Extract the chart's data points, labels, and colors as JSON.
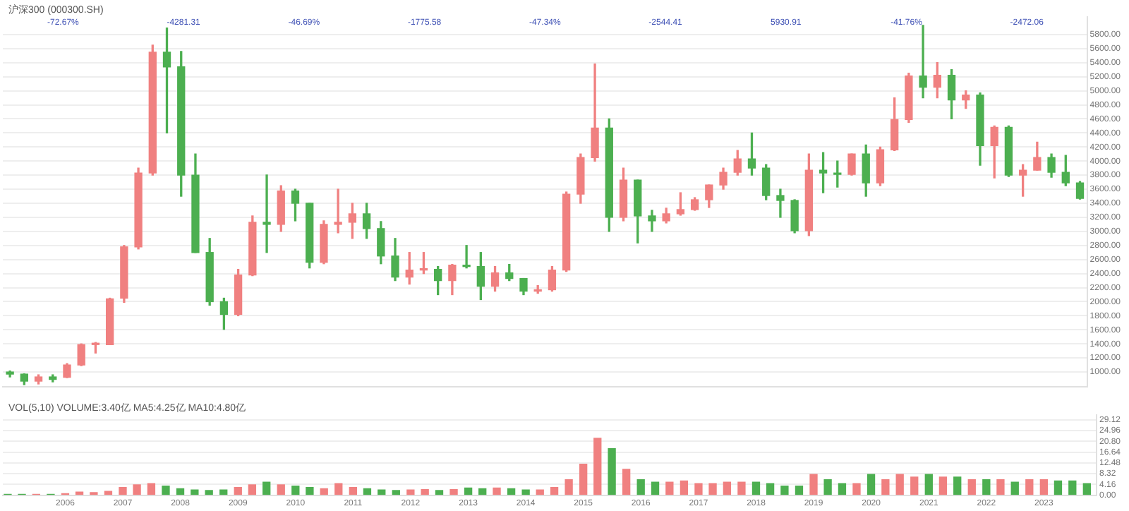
{
  "chart_data": [
    {
      "type": "candlestick",
      "title": "沪深300 (000300.SH)",
      "categories": [
        null,
        null,
        null,
        null,
        null,
        null,
        null,
        null,
        null,
        null,
        null,
        null,
        null,
        null,
        null,
        null,
        null,
        null,
        null,
        null,
        null,
        null,
        null,
        null,
        null,
        null,
        null,
        null,
        null,
        null,
        null,
        null,
        null,
        null,
        null,
        null,
        null,
        null,
        null,
        null,
        null,
        null,
        null,
        null,
        null,
        null,
        null,
        null,
        null,
        null,
        null,
        null,
        null,
        null,
        null,
        null,
        null,
        null,
        null,
        null,
        null,
        null,
        null,
        null,
        null,
        null,
        null,
        null,
        null,
        null,
        null,
        null,
        null,
        null,
        null,
        null
      ],
      "ohlc": [
        [
          1000,
          1015,
          930,
          970
        ],
        [
          970,
          975,
          820,
          870
        ],
        [
          870,
          960,
          830,
          930
        ],
        [
          930,
          960,
          860,
          895
        ],
        [
          925,
          1120,
          920,
          1100
        ],
        [
          1100,
          1400,
          1090,
          1390
        ],
        [
          1390,
          1420,
          1270,
          1390
        ],
        [
          1390,
          2050,
          1390,
          2040
        ],
        [
          2050,
          2800,
          1990,
          2780
        ],
        [
          2780,
          3900,
          2750,
          3830
        ],
        [
          3830,
          5650,
          3800,
          5550
        ],
        [
          5550,
          5891.72,
          4400,
          5340
        ],
        [
          5340,
          5560,
          3500,
          3800
        ],
        [
          3800,
          4100,
          2700,
          2700
        ],
        [
          2700,
          2900,
          1950,
          2000
        ],
        [
          2000,
          2050,
          1606.73,
          1820
        ],
        [
          1820,
          2460,
          1800,
          2380
        ],
        [
          2380,
          3220,
          2370,
          3130
        ],
        [
          3130,
          3803,
          2700,
          3100
        ],
        [
          3100,
          3650,
          3000,
          3575
        ],
        [
          3575,
          3600,
          3150,
          3400
        ],
        [
          3400,
          3400,
          2480,
          2560
        ],
        [
          2560,
          3150,
          2540,
          3100
        ],
        [
          3100,
          3600,
          2980,
          3130
        ],
        [
          3130,
          3400,
          2900,
          3250
        ],
        [
          3250,
          3400,
          2900,
          3040
        ],
        [
          3040,
          3140,
          2540,
          2650
        ],
        [
          2650,
          2900,
          2300,
          2350
        ],
        [
          2350,
          2700,
          2250,
          2450
        ],
        [
          2450,
          2700,
          2400,
          2460
        ],
        [
          2460,
          2500,
          2100,
          2300
        ],
        [
          2300,
          2530,
          2100,
          2520
        ],
        [
          2520,
          2800,
          2480,
          2500
        ],
        [
          2500,
          2700,
          2030,
          2220
        ],
        [
          2220,
          2500,
          2150,
          2410
        ],
        [
          2410,
          2530,
          2300,
          2330
        ],
        [
          2330,
          2330,
          2100,
          2150
        ],
        [
          2150,
          2230,
          2120,
          2170
        ],
        [
          2170,
          2500,
          2150,
          2450
        ],
        [
          2450,
          3560,
          2430,
          3530
        ],
        [
          3530,
          4100,
          3400,
          4050
        ],
        [
          4050,
          5380,
          4000,
          4470
        ],
        [
          4470,
          4600,
          3000,
          3200
        ],
        [
          3200,
          3900,
          3150,
          3730
        ],
        [
          3730,
          3730,
          2836,
          3220
        ],
        [
          3220,
          3300,
          3000,
          3150
        ],
        [
          3150,
          3330,
          3120,
          3250
        ],
        [
          3250,
          3550,
          3230,
          3310
        ],
        [
          3310,
          3480,
          3300,
          3450
        ],
        [
          3450,
          3660,
          3340,
          3660
        ],
        [
          3660,
          3900,
          3600,
          3840
        ],
        [
          3840,
          4150,
          3800,
          4030
        ],
        [
          4030,
          4400,
          3800,
          3900
        ],
        [
          3900,
          3950,
          3450,
          3510
        ],
        [
          3510,
          3600,
          3200,
          3440
        ],
        [
          3440,
          3450,
          2980,
          3010
        ],
        [
          3010,
          4100,
          2940,
          3870
        ],
        [
          3870,
          4120,
          3550,
          3830
        ],
        [
          3830,
          4000,
          3630,
          3810
        ],
        [
          3810,
          4100,
          3800,
          4100
        ],
        [
          4100,
          4230,
          3500,
          3690
        ],
        [
          3690,
          4200,
          3650,
          4160
        ],
        [
          4160,
          4900,
          4150,
          4590
        ],
        [
          4590,
          5250,
          4550,
          5210
        ],
        [
          5210,
          5930.91,
          4900,
          5050
        ],
        [
          5050,
          5400,
          4900,
          5220
        ],
        [
          5220,
          5300,
          4600,
          4870
        ],
        [
          4870,
          5000,
          4750,
          4940
        ],
        [
          4940,
          4970,
          3940,
          4220
        ],
        [
          4220,
          4500,
          3760,
          4480
        ],
        [
          4480,
          4500,
          3780,
          3800
        ],
        [
          3800,
          3950,
          3500,
          3870
        ],
        [
          3870,
          4270,
          3870,
          4050
        ],
        [
          4050,
          4100,
          3770,
          3840
        ],
        [
          3840,
          4080,
          3650,
          3690
        ],
        [
          3690,
          3710,
          3458.85,
          3470
        ]
      ],
      "colors": [
        "#4caf50",
        "#4caf50",
        "#f08080",
        "#4caf50",
        "#f08080",
        "#f08080",
        "#f08080",
        "#f08080",
        "#f08080",
        "#f08080",
        "#f08080",
        "#4caf50",
        "#4caf50",
        "#4caf50",
        "#4caf50",
        "#4caf50",
        "#f08080",
        "#f08080",
        "#4caf50",
        "#f08080",
        "#4caf50",
        "#4caf50",
        "#f08080",
        "#f08080",
        "#f08080",
        "#4caf50",
        "#4caf50",
        "#4caf50",
        "#f08080",
        "#f08080",
        "#4caf50",
        "#f08080",
        "#4caf50",
        "#4caf50",
        "#f08080",
        "#4caf50",
        "#4caf50",
        "#f08080",
        "#f08080",
        "#f08080",
        "#f08080",
        "#f08080",
        "#4caf50",
        "#f08080",
        "#4caf50",
        "#4caf50",
        "#f08080",
        "#f08080",
        "#f08080",
        "#f08080",
        "#f08080",
        "#f08080",
        "#4caf50",
        "#4caf50",
        "#4caf50",
        "#4caf50",
        "#f08080",
        "#4caf50",
        "#4caf50",
        "#f08080",
        "#4caf50",
        "#f08080",
        "#f08080",
        "#f08080",
        "#4caf50",
        "#f08080",
        "#4caf50",
        "#f08080",
        "#4caf50",
        "#f08080",
        "#4caf50",
        "#f08080",
        "#f08080",
        "#4caf50",
        "#4caf50",
        "#4caf50"
      ],
      "ylim": [
        790,
        6050
      ],
      "yticks": [
        {
          "value": 1000,
          "label": "1000.00"
        },
        {
          "value": 1200,
          "label": "1200.00"
        },
        {
          "value": 1400,
          "label": "1400.00"
        },
        {
          "value": 1600,
          "label": "1600.00"
        },
        {
          "value": 1800,
          "label": "1800.00"
        },
        {
          "value": 2000,
          "label": "2000.00"
        },
        {
          "value": 2200,
          "label": "2200.00"
        },
        {
          "value": 2400,
          "label": "2400.00"
        },
        {
          "value": 2600,
          "label": "2600.00"
        },
        {
          "value": 2800,
          "label": "2800.00"
        },
        {
          "value": 3000,
          "label": "3000.00"
        },
        {
          "value": 3200,
          "label": "3200.00"
        },
        {
          "value": 3400,
          "label": "3400.00"
        },
        {
          "value": 3600,
          "label": "3600.00"
        },
        {
          "value": 3800,
          "label": "3800.00"
        },
        {
          "value": 4000,
          "label": "4000.00"
        },
        {
          "value": 4200,
          "label": "4200.00"
        },
        {
          "value": 4400,
          "label": "4400.00"
        },
        {
          "value": 4600,
          "label": "4600.00"
        },
        {
          "value": 4800,
          "label": "4800.00"
        },
        {
          "value": 5000,
          "label": "5000.00"
        },
        {
          "value": 5200,
          "label": "5200.00"
        },
        {
          "value": 5400,
          "label": "5400.00"
        },
        {
          "value": 5600,
          "label": "5600.00"
        },
        {
          "value": 5800,
          "label": "5800.00"
        }
      ],
      "tick_labels": "y",
      "grid": "y",
      "legend": false,
      "annotations": [
        "-72.67%",
        "-4281.31",
        "-46.69%",
        "-1775.58",
        "-47.34%",
        "-2544.41",
        "5930.91",
        "-41.76%",
        "-2472.06"
      ]
    },
    {
      "type": "bar",
      "title": "VOL(5,10)  VOLUME:3.40亿  MA5:4.25亿  MA10:4.80亿",
      "x": [
        "2005-01",
        "2005-04",
        "2005-07",
        "2005-10",
        "2006-01",
        "2006-04",
        "2006-07",
        "2006-10",
        "2007-01",
        "2007-04",
        "2007-07",
        "2007-10",
        "2008-01",
        "2008-04",
        "2008-07",
        "2008-10",
        "2009-01",
        "2009-04",
        "2009-07",
        "2009-10",
        "2010-01",
        "2010-04",
        "2010-07",
        "2010-10",
        "2011-01",
        "2011-04",
        "2011-07",
        "2011-10",
        "2012-01",
        "2012-04",
        "2012-07",
        "2012-10",
        "2013-01",
        "2013-04",
        "2013-07",
        "2013-10",
        "2014-01",
        "2014-04",
        "2014-07",
        "2014-10",
        "2015-01",
        "2015-04",
        "2015-07",
        "2015-10",
        "2016-01",
        "2016-04",
        "2016-07",
        "2016-10",
        "2017-01",
        "2017-04",
        "2017-07",
        "2017-10",
        "2018-01",
        "2018-04",
        "2018-07",
        "2018-10",
        "2019-01",
        "2019-04",
        "2019-07",
        "2019-10",
        "2020-01",
        "2020-04",
        "2020-07",
        "2020-10",
        "2021-01",
        "2021-04",
        "2021-07",
        "2021-10",
        "2022-01",
        "2022-04",
        "2022-07",
        "2022-10",
        "2023-01",
        "2023-04",
        "2023-07",
        "2023-10"
      ],
      "values": [
        0.3,
        0.3,
        0.3,
        0.3,
        0.6,
        1.2,
        1,
        1.5,
        3,
        4,
        4.5,
        3.5,
        2.5,
        2,
        1.8,
        2,
        3,
        4,
        5,
        4,
        3.5,
        3,
        2.5,
        4.5,
        3,
        2.5,
        2,
        1.8,
        2,
        2.2,
        1.8,
        2.2,
        2.8,
        2.5,
        2.8,
        2.5,
        2,
        2,
        3,
        6,
        12,
        22,
        18,
        10,
        6,
        5,
        5,
        5.5,
        4.5,
        4.5,
        5,
        5,
        5,
        4.5,
        3.5,
        3.5,
        8,
        6,
        4.5,
        4.5,
        8,
        6,
        8,
        7,
        8,
        7,
        7,
        6,
        6,
        6,
        5,
        6,
        6,
        5.5,
        5.5,
        4.5
      ],
      "colors": [
        "#4caf50",
        "#4caf50",
        "#f08080",
        "#4caf50",
        "#f08080",
        "#f08080",
        "#f08080",
        "#f08080",
        "#f08080",
        "#f08080",
        "#f08080",
        "#4caf50",
        "#4caf50",
        "#4caf50",
        "#4caf50",
        "#4caf50",
        "#f08080",
        "#f08080",
        "#4caf50",
        "#f08080",
        "#4caf50",
        "#4caf50",
        "#f08080",
        "#f08080",
        "#f08080",
        "#4caf50",
        "#4caf50",
        "#4caf50",
        "#f08080",
        "#f08080",
        "#4caf50",
        "#f08080",
        "#4caf50",
        "#4caf50",
        "#f08080",
        "#4caf50",
        "#4caf50",
        "#f08080",
        "#f08080",
        "#f08080",
        "#f08080",
        "#f08080",
        "#4caf50",
        "#f08080",
        "#4caf50",
        "#4caf50",
        "#f08080",
        "#f08080",
        "#f08080",
        "#f08080",
        "#f08080",
        "#f08080",
        "#4caf50",
        "#4caf50",
        "#4caf50",
        "#4caf50",
        "#f08080",
        "#4caf50",
        "#4caf50",
        "#f08080",
        "#4caf50",
        "#f08080",
        "#f08080",
        "#f08080",
        "#4caf50",
        "#f08080",
        "#4caf50",
        "#f08080",
        "#4caf50",
        "#f08080",
        "#4caf50",
        "#f08080",
        "#f08080",
        "#4caf50",
        "#4caf50",
        "#4caf50"
      ],
      "xlim": [
        "2004-12",
        "2023-12"
      ],
      "xticks": [
        "2006",
        "2007",
        "2008",
        "2009",
        "2010",
        "2011",
        "2012",
        "2013",
        "2014",
        "2015",
        "2016",
        "2017",
        "2018",
        "2019",
        "2020",
        "2021",
        "2022",
        "2023"
      ],
      "ylim": [
        0,
        31
      ],
      "yticks": [
        {
          "value": 0,
          "label": "0.00"
        },
        {
          "value": 4.16,
          "label": "4.16"
        },
        {
          "value": 8.32,
          "label": "8.32"
        },
        {
          "value": 12.48,
          "label": "12.48"
        },
        {
          "value": 16.64,
          "label": "16.64"
        },
        {
          "value": 20.8,
          "label": "20.80"
        },
        {
          "value": 24.96,
          "label": "24.96"
        },
        {
          "value": 29.12,
          "label": "29.12"
        }
      ],
      "grid": "y",
      "legend": false
    }
  ]
}
